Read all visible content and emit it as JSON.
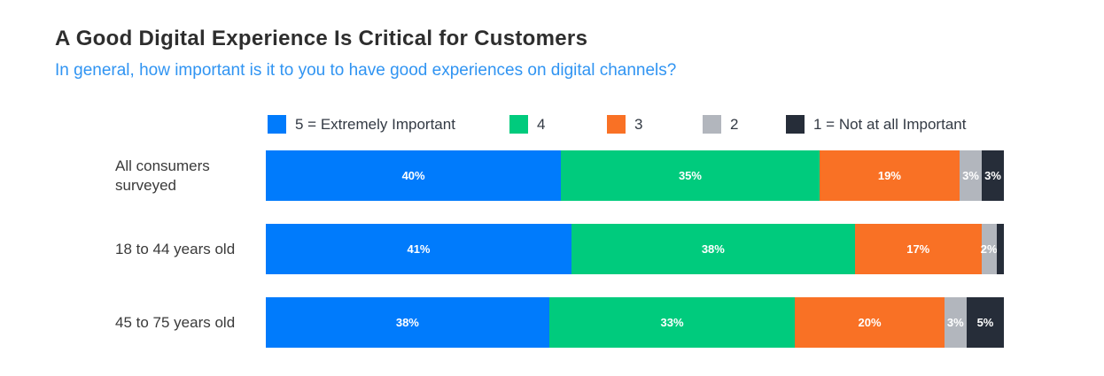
{
  "header": {
    "title": "A Good Digital Experience Is Critical for Customers",
    "subtitle": "In general, how important is it to you to have good experiences on digital channels?"
  },
  "colors": {
    "title_text": "#2e2e2e",
    "subtitle_text": "#3094f2",
    "rating_5_blue": "#007bfc",
    "rating_4_green": "#00cb7d",
    "rating_3_orange": "#f97125",
    "rating_2_gray": "#b2b6bd",
    "rating_1_dark": "#262d39",
    "bar_value_text": "#ffffff"
  },
  "chart_data": {
    "type": "bar",
    "orientation": "horizontal",
    "stacked": true,
    "value_unit": "percent",
    "legend_position": "top",
    "title": "A Good Digital Experience Is Critical for Customers",
    "question": "In general, how important is it to you to have good experiences on digital channels?",
    "categories": [
      "All consumers surveyed",
      "18 to 44 years old",
      "45 to 75 years old"
    ],
    "series": [
      {
        "name": "5 = Extremely Important",
        "color": "#007bfc",
        "values": [
          40,
          41,
          38
        ]
      },
      {
        "name": "4",
        "color": "#00cb7d",
        "values": [
          35,
          38,
          33
        ]
      },
      {
        "name": "3",
        "color": "#f97125",
        "values": [
          19,
          17,
          20
        ]
      },
      {
        "name": "2",
        "color": "#b2b6bd",
        "values": [
          3,
          2,
          3
        ]
      },
      {
        "name": "1 = Not at all Important",
        "color": "#262d39",
        "values": [
          3,
          1,
          5
        ]
      }
    ],
    "segment_labels": [
      [
        "40%",
        "35%",
        "19%",
        "3%",
        "3%"
      ],
      [
        "41%",
        "38%",
        "17%",
        "2%",
        ""
      ],
      [
        "38%",
        "33%",
        "20%",
        "3%",
        "5%"
      ]
    ]
  }
}
